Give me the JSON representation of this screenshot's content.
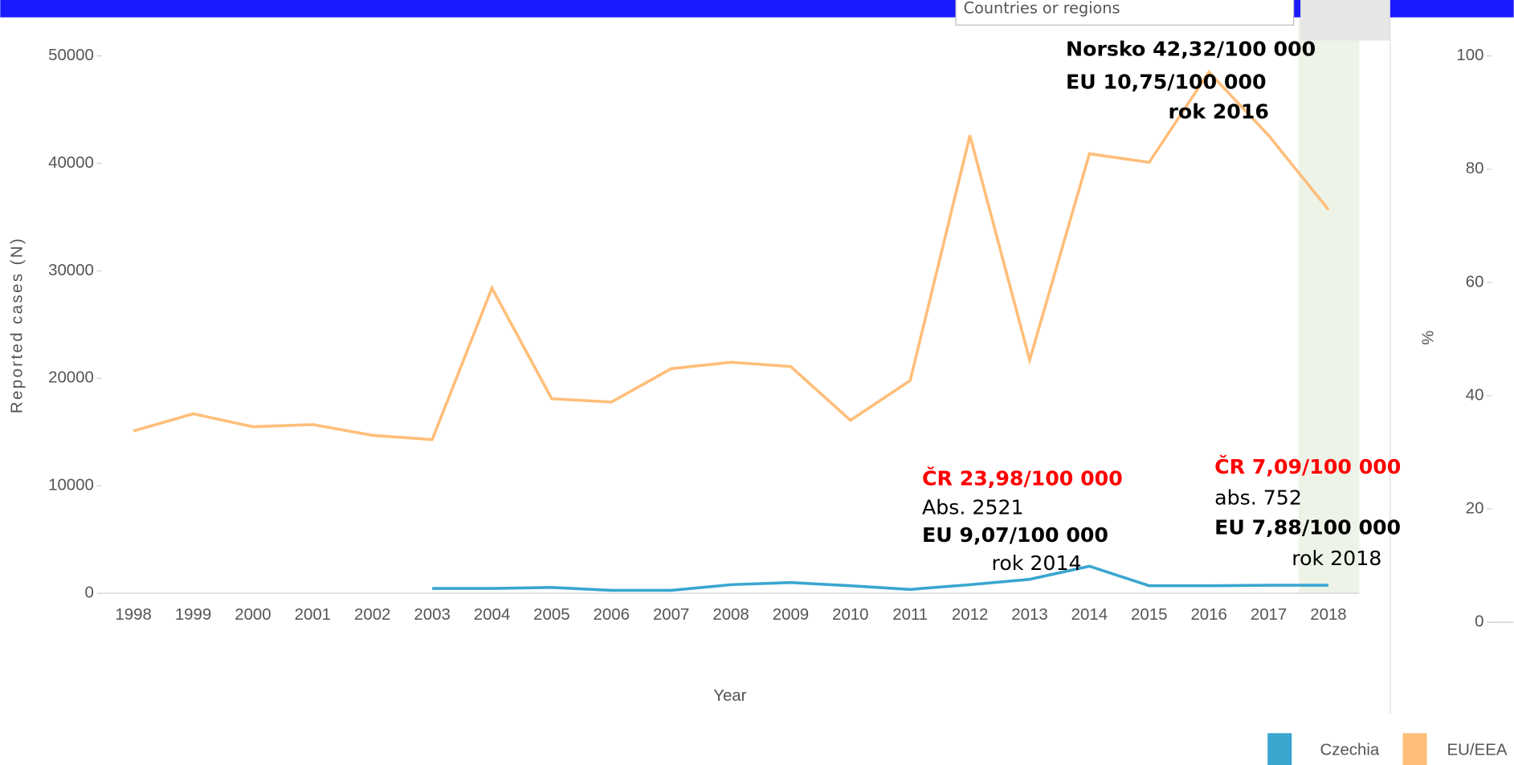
{
  "dropdown_label": "Countries or regions",
  "chart_data": {
    "type": "line",
    "y_axis_label": "Reported cases (N)",
    "y2_axis_label": "%",
    "x_axis_label": "Year",
    "categories": [
      "1998",
      "1999",
      "2000",
      "2001",
      "2002",
      "2003",
      "2004",
      "2005",
      "2006",
      "2007",
      "2008",
      "2009",
      "2010",
      "2011",
      "2012",
      "2013",
      "2014",
      "2015",
      "2016",
      "2017",
      "2018"
    ],
    "series": [
      {
        "name": "Czechia",
        "color": "#3aa6cf",
        "values": [
          null,
          null,
          null,
          null,
          null,
          450,
          450,
          540,
          270,
          270,
          800,
          1000,
          700,
          360,
          800,
          1300,
          2521,
          700,
          700,
          750,
          752
        ]
      },
      {
        "name": "EU/EEA",
        "color": "#ffbe7a",
        "values": [
          15100,
          16700,
          15500,
          15700,
          14700,
          14300,
          28400,
          18100,
          17800,
          20900,
          21500,
          21100,
          16100,
          19800,
          42600,
          21700,
          40900,
          40100,
          48500,
          42600,
          35700
        ]
      }
    ],
    "ylim": [
      0,
      50000
    ],
    "yticks": [
      0,
      10000,
      20000,
      30000,
      40000,
      50000
    ],
    "y2lim": [
      0,
      100
    ],
    "y2ticks": [
      0,
      20,
      40,
      60,
      80,
      100
    ],
    "legend": "bottom-right",
    "annotations": [
      {
        "lines": [
          "Norsko 42,32/100 000",
          "EU 10,75/100 000",
          "rok 2016"
        ]
      },
      {
        "lines": [
          "ČR  23,98/100 000",
          "Abs. 2521",
          "EU 9,07/100 000",
          "rok 2014"
        ]
      },
      {
        "lines": [
          "ČR  7,09/100 000",
          "abs. 752",
          "EU 7,88/100 000",
          "rok 2018"
        ]
      }
    ]
  }
}
